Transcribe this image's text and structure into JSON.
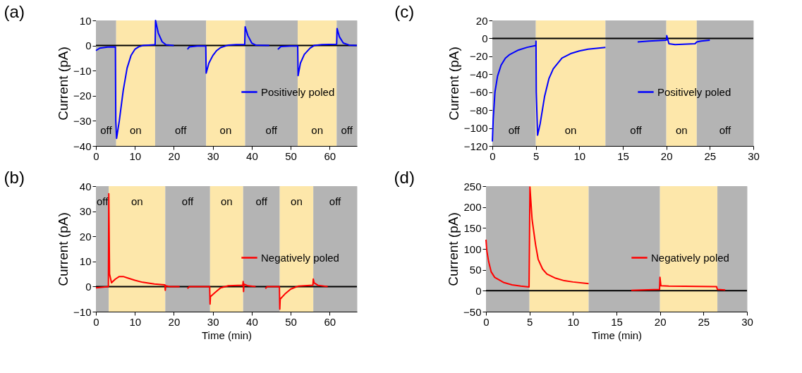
{
  "chart_data": [
    {
      "type": "line",
      "title": "(a)",
      "ylabel": "Current (pA)",
      "legend": "right",
      "xlim": [
        0,
        67
      ],
      "xticks": [
        0,
        10,
        20,
        30,
        40,
        50,
        60
      ],
      "ylim": [
        -40,
        10
      ],
      "yticks": [
        -40,
        -30,
        -20,
        -10,
        0,
        10
      ],
      "x": [
        0,
        1,
        3,
        5,
        5.1,
        5.3,
        6,
        7,
        8,
        9,
        10,
        11,
        12,
        15,
        15.2,
        15.3,
        16,
        17,
        18,
        20,
        21,
        23.5,
        24,
        26,
        28.2,
        28.3,
        29,
        30,
        31,
        32,
        34,
        36,
        38.2,
        38.3,
        39,
        40,
        41,
        44.5,
        45,
        46.7,
        47.5,
        50,
        51.8,
        51.9,
        52.5,
        53.5,
        55,
        56,
        58,
        61.8,
        61.9,
        62.5,
        63.5,
        65,
        67
      ],
      "series": [
        {
          "name": "Positively poled",
          "color": "#0000ff",
          "values": [
            -2,
            -1,
            -0.6,
            -0.5,
            -30,
            -37,
            -30,
            -18,
            -9,
            -4,
            -1.5,
            -0.5,
            0,
            0.3,
            0.3,
            10,
            5,
            1.5,
            0.3,
            0,
            null,
            -1.5,
            -0.5,
            -0.2,
            -0.2,
            -11,
            -7,
            -4,
            -2,
            -0.8,
            0.2,
            0.4,
            0.4,
            7.5,
            4,
            1,
            0.2,
            0,
            null,
            -1.5,
            -0.4,
            -0.2,
            -0.2,
            -12,
            -7,
            -3.5,
            -1,
            0,
            0.4,
            0.5,
            6.8,
            3.5,
            1,
            0.2,
            0
          ]
        }
      ],
      "ref_lines": [
        {
          "axis": "y",
          "value": 0,
          "color": "#000000"
        }
      ],
      "bands": [
        {
          "axis": "x",
          "from": 0,
          "to": 5.2,
          "label": "off",
          "color": "#b4b4b4"
        },
        {
          "axis": "x",
          "from": 5.2,
          "to": 15.2,
          "label": "on",
          "color": "#fde7aa"
        },
        {
          "axis": "x",
          "from": 15.2,
          "to": 28.3,
          "label": "off",
          "color": "#b4b4b4"
        },
        {
          "axis": "x",
          "from": 28.3,
          "to": 38.3,
          "label": "on",
          "color": "#fde7aa"
        },
        {
          "axis": "x",
          "from": 38.3,
          "to": 51.8,
          "label": "off",
          "color": "#b4b4b4"
        },
        {
          "axis": "x",
          "from": 51.8,
          "to": 61.8,
          "label": "on",
          "color": "#fde7aa"
        },
        {
          "axis": "x",
          "from": 61.8,
          "to": 67,
          "label": "off",
          "color": "#b4b4b4"
        }
      ]
    },
    {
      "type": "line",
      "title": "(c)",
      "ylabel": "Current (pA)",
      "legend": "right",
      "xlim": [
        0,
        30
      ],
      "xticks": [
        0,
        5,
        10,
        15,
        20,
        25,
        30
      ],
      "ylim": [
        -120,
        20
      ],
      "yticks": [
        -120,
        -100,
        -80,
        -60,
        -40,
        -20,
        0,
        20
      ],
      "x": [
        0,
        0.1,
        0.3,
        0.6,
        1,
        1.5,
        2,
        3,
        4,
        5,
        5.02,
        5.05,
        5.2,
        5.5,
        6,
        6.5,
        7,
        8,
        9,
        10,
        11,
        13,
        14,
        16.7,
        18,
        20,
        20.05,
        20.3,
        21,
        23.3,
        23.5,
        24,
        25
      ],
      "series": [
        {
          "name": "Positively poled",
          "color": "#0000ff",
          "values": [
            -115,
            -90,
            -60,
            -42,
            -30,
            -22,
            -18,
            -13,
            -10,
            -8,
            -3,
            -60,
            -108,
            -95,
            -65,
            -45,
            -34,
            -22,
            -17,
            -14,
            -12,
            -10,
            null,
            -4,
            -3,
            -2,
            3,
            -6,
            -7,
            -6,
            -4,
            -3,
            -2
          ]
        }
      ],
      "ref_lines": [
        {
          "axis": "y",
          "value": 0,
          "color": "#000000"
        }
      ],
      "bands": [
        {
          "axis": "x",
          "from": 0,
          "to": 5,
          "label": "off",
          "color": "#b4b4b4"
        },
        {
          "axis": "x",
          "from": 5,
          "to": 13,
          "label": "on",
          "color": "#fde7aa"
        },
        {
          "axis": "x",
          "from": 13,
          "to": 20,
          "label": "off",
          "color": "#b4b4b4"
        },
        {
          "axis": "x",
          "from": 20,
          "to": 23.5,
          "label": "on",
          "color": "#fde7aa"
        },
        {
          "axis": "x",
          "from": 23.5,
          "to": 30,
          "label": "off",
          "color": "#b4b4b4"
        }
      ]
    },
    {
      "type": "line",
      "title": "(b)",
      "xlabel": "Time (min)",
      "ylabel": "Current (pA)",
      "legend": "right",
      "xlim": [
        0,
        67
      ],
      "xticks": [
        0,
        10,
        20,
        30,
        40,
        50,
        60
      ],
      "ylim": [
        -10,
        40
      ],
      "yticks": [
        -10,
        0,
        10,
        20,
        30,
        40
      ],
      "x": [
        0,
        3.2,
        3.3,
        3.5,
        4,
        5,
        6,
        7,
        8,
        10,
        12,
        15,
        17.7,
        17.8,
        17.9,
        19,
        21.5,
        22,
        23.5,
        24,
        29.2,
        29.3,
        29.4,
        30.5,
        32,
        34,
        37.7,
        37.8,
        37.9,
        38,
        39,
        41,
        42,
        43.5,
        44,
        47.1,
        47.2,
        47.3,
        48.5,
        50,
        52,
        55.7,
        55.8,
        56,
        57,
        59.5
      ],
      "series": [
        {
          "name": "Negatively poled",
          "color": "#ff0000",
          "values": [
            -0.5,
            0,
            37,
            5,
            1.5,
            3,
            4,
            4,
            3.5,
            2.5,
            1.7,
            1,
            0.7,
            -1.5,
            0.3,
            0,
            0,
            null,
            -0.8,
            0,
            0,
            -7,
            -4,
            -2.5,
            -0.5,
            0.3,
            0.5,
            2,
            -2,
            1,
            0.3,
            0,
            null,
            -0.8,
            0,
            0,
            -9,
            -5,
            -3,
            -1,
            0.2,
            0.5,
            3,
            1.5,
            0.5,
            0
          ]
        }
      ],
      "ref_lines": [
        {
          "axis": "y",
          "value": 0,
          "color": "#000000"
        }
      ],
      "bands": [
        {
          "axis": "x",
          "from": 0,
          "to": 3.3,
          "label": "off",
          "color": "#b4b4b4"
        },
        {
          "axis": "x",
          "from": 3.3,
          "to": 17.8,
          "label": "on",
          "color": "#fde7aa"
        },
        {
          "axis": "x",
          "from": 17.8,
          "to": 29.3,
          "label": "off",
          "color": "#b4b4b4"
        },
        {
          "axis": "x",
          "from": 29.3,
          "to": 37.8,
          "label": "on",
          "color": "#fde7aa"
        },
        {
          "axis": "x",
          "from": 37.8,
          "to": 47.2,
          "label": "off",
          "color": "#b4b4b4"
        },
        {
          "axis": "x",
          "from": 47.2,
          "to": 55.8,
          "label": "on",
          "color": "#fde7aa"
        },
        {
          "axis": "x",
          "from": 55.8,
          "to": 67,
          "label": "off",
          "color": "#b4b4b4"
        }
      ]
    },
    {
      "type": "line",
      "title": "(d)",
      "xlabel": "Time (min)",
      "ylabel": "Current (pA)",
      "legend": "right",
      "xlim": [
        0,
        30
      ],
      "xticks": [
        0,
        5,
        10,
        15,
        20,
        25,
        30
      ],
      "ylim": [
        -50,
        250
      ],
      "yticks": [
        -50,
        0,
        50,
        100,
        150,
        200,
        250
      ],
      "x": [
        0,
        0.1,
        0.3,
        0.6,
        1,
        2,
        3,
        4,
        4.95,
        5,
        5.05,
        5.3,
        5.7,
        6,
        6.5,
        7,
        8,
        9,
        10,
        11.8,
        14,
        16.7,
        18,
        19.95,
        20,
        20.1,
        21,
        26.5,
        26.6,
        27.5
      ],
      "series": [
        {
          "name": "Negatively poled",
          "color": "#ff0000",
          "values": [
            122,
            95,
            70,
            45,
            32,
            20,
            14,
            11,
            9,
            120,
            248,
            170,
            110,
            75,
            52,
            40,
            30,
            24,
            21,
            17,
            null,
            1,
            2,
            3,
            32,
            12,
            11,
            10,
            3,
            2
          ]
        }
      ],
      "ref_lines": [
        {
          "axis": "y",
          "value": 0,
          "color": "#000000"
        }
      ],
      "bands": [
        {
          "axis": "x",
          "from": 0,
          "to": 5,
          "color": "#b4b4b4"
        },
        {
          "axis": "x",
          "from": 5,
          "to": 11.8,
          "color": "#fde7aa"
        },
        {
          "axis": "x",
          "from": 11.8,
          "to": 20,
          "color": "#b4b4b4"
        },
        {
          "axis": "x",
          "from": 20,
          "to": 26.6,
          "color": "#fde7aa"
        },
        {
          "axis": "x",
          "from": 26.6,
          "to": 30,
          "color": "#b4b4b4"
        }
      ]
    }
  ]
}
